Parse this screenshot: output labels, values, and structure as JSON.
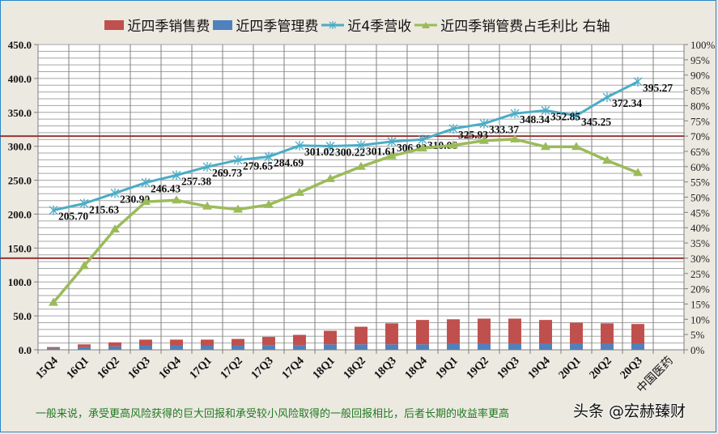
{
  "legend": {
    "items": [
      {
        "label": "近四季销售费",
        "type": "bar",
        "color": "#C0504D"
      },
      {
        "label": "近四季管理费",
        "type": "bar",
        "color": "#4F81BD"
      },
      {
        "label": "近4季营收",
        "type": "line-star",
        "color": "#4BACC6"
      },
      {
        "label": "近四季销管费占毛利比 右轴",
        "type": "line-triangle",
        "color": "#9BBB59"
      }
    ]
  },
  "footer": {
    "note": "一般来说，承受更高风险获得的巨大回报和承受较小风险取得的一般回报相比，后者长期的收益率更高",
    "watermark": "头条 @宏赫臻财"
  },
  "chart_data": {
    "type": "bar+line",
    "title": "",
    "categories": [
      "15Q4",
      "16Q1",
      "16Q2",
      "16Q3",
      "16Q4",
      "17Q1",
      "17Q2",
      "17Q3",
      "17Q4",
      "18Q1",
      "18Q2",
      "18Q3",
      "18Q4",
      "19Q1",
      "19Q2",
      "19Q3",
      "19Q4",
      "20Q1",
      "20Q2",
      "20Q3",
      "中国医药"
    ],
    "left_axis": {
      "min": 0,
      "max": 450,
      "step": 50,
      "minor_step": 10,
      "tick_labels": [
        "0.0",
        "50.0",
        "100.0",
        "150.0",
        "200.0",
        "250.0",
        "300.0",
        "350.0",
        "400.0",
        "450.0"
      ]
    },
    "right_axis": {
      "min": 0,
      "max": 100,
      "step": 5,
      "unit": "%",
      "tick_labels": [
        "0%",
        "5%",
        "10%",
        "15%",
        "20%",
        "25%",
        "30%",
        "35%",
        "40%",
        "45%",
        "50%",
        "55%",
        "60%",
        "65%",
        "70%",
        "75%",
        "80%",
        "85%",
        "90%",
        "95%",
        "100%"
      ]
    },
    "grid": true,
    "legend_position": "top",
    "series": [
      {
        "name": "近四季销售费",
        "type": "bar-stacked",
        "axis": "left",
        "color": "#C0504D",
        "values": [
          2,
          4,
          6,
          9,
          9,
          9,
          10,
          12,
          15,
          20,
          26,
          31,
          36,
          36,
          37,
          37,
          35,
          31,
          30,
          29,
          null
        ]
      },
      {
        "name": "近四季管理费",
        "type": "bar-stacked",
        "axis": "left",
        "color": "#4F81BD",
        "values": [
          2,
          4,
          5,
          6,
          6,
          6,
          6,
          7,
          7,
          8,
          8,
          8,
          8,
          9,
          9,
          9,
          9,
          9,
          9,
          9,
          null
        ]
      },
      {
        "name": "近4季营收",
        "type": "line",
        "axis": "left",
        "color": "#4BACC6",
        "marker": "star",
        "values": [
          205.7,
          215.63,
          230.9,
          246.43,
          257.38,
          269.73,
          279.65,
          284.69,
          301.02,
          300.22,
          301.61,
          306.89,
          310.06,
          325.93,
          333.37,
          348.34,
          352.85,
          345.25,
          372.34,
          395.27,
          null
        ],
        "data_labels": [
          "205.70",
          "215.63",
          "230.90",
          "246.43",
          "257.38",
          "269.73",
          "279.65",
          "284.69",
          "301.02",
          "300.22",
          "301.61",
          "306.89",
          "310.06",
          "325.93",
          "333.37",
          "348.34",
          "352.85",
          "345.25",
          "372.34",
          "395.27"
        ]
      },
      {
        "name": "近四季销管费占毛利比 右轴",
        "type": "line",
        "axis": "right",
        "color": "#9BBB59",
        "marker": "triangle",
        "values": [
          15.5,
          27.5,
          39.5,
          48.5,
          49,
          47,
          46,
          47.5,
          51.5,
          56,
          60,
          63.5,
          66,
          67,
          68.5,
          69,
          66.5,
          66.5,
          62,
          58,
          null
        ]
      }
    ],
    "reference_lines": [
      {
        "axis": "right",
        "value": 70,
        "color": "#953735"
      },
      {
        "axis": "right",
        "value": 30,
        "color": "#953735"
      }
    ]
  }
}
